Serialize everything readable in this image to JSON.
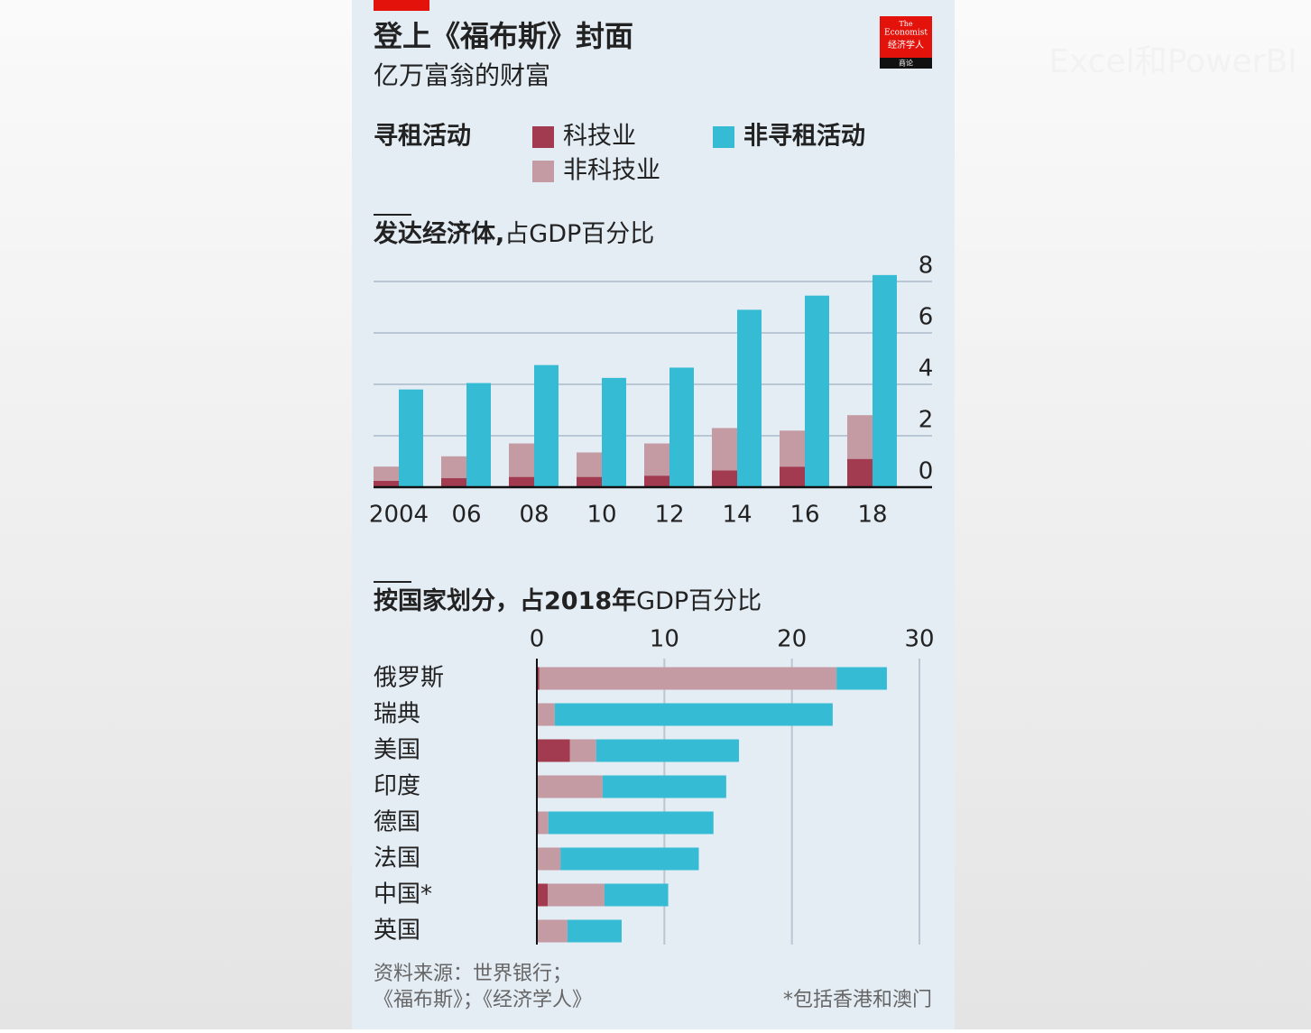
{
  "header": {
    "title": "登上《福布斯》封面",
    "subtitle": "亿万富翁的财富"
  },
  "logo": {
    "line1": "The",
    "line2": "Economist",
    "line3": "经济学人",
    "line4": "商论"
  },
  "watermark": "Excel和PowerBI",
  "chart_data": [
    {
      "type": "bar",
      "title": "发达经济体,",
      "title_unit": "占GDP百分比",
      "legend_group": "寻租活动",
      "categories": [
        "2004",
        "06",
        "08",
        "10",
        "12",
        "14",
        "16",
        "18"
      ],
      "series": [
        {
          "name": "科技业",
          "color": "#a23a50",
          "values": [
            0.25,
            0.35,
            0.4,
            0.4,
            0.45,
            0.65,
            0.8,
            1.1
          ]
        },
        {
          "name": "非科技业",
          "color": "#c49aa3",
          "values": [
            0.55,
            0.85,
            1.3,
            0.95,
            1.25,
            1.65,
            1.4,
            1.7
          ]
        },
        {
          "name": "非寻租活动",
          "color": "#35bcd4",
          "values": [
            3.8,
            4.05,
            4.75,
            4.25,
            4.65,
            6.9,
            7.45,
            8.25
          ]
        }
      ],
      "ylim": [
        0,
        8
      ],
      "yticks": [
        0,
        2,
        4,
        6,
        8
      ],
      "grid": true
    },
    {
      "type": "hbar",
      "title": "按国家划分，占2018年",
      "title_unit": "GDP百分比",
      "categories": [
        "俄罗斯",
        "瑞典",
        "美国",
        "印度",
        "德国",
        "法国",
        "中国*",
        "英国"
      ],
      "series": [
        {
          "color": "#a23a50",
          "values": [
            0.2,
            0,
            2.6,
            0,
            0.1,
            0,
            0.85,
            0
          ]
        },
        {
          "color": "#c49aa3",
          "values": [
            23.3,
            1.4,
            2.05,
            5.15,
            0.8,
            1.85,
            4.45,
            2.4
          ]
        },
        {
          "color": "#35bcd4",
          "values": [
            3.95,
            21.8,
            11.2,
            9.7,
            12.95,
            10.85,
            5.0,
            4.25
          ]
        }
      ],
      "xlim": [
        0,
        30
      ],
      "xticks": [
        0,
        10,
        20,
        30
      ],
      "grid": true
    }
  ],
  "footer": {
    "source1": "资料来源：世界银行；",
    "source2": "《福布斯》；《经济学人》",
    "note": "*包括香港和澳门"
  }
}
